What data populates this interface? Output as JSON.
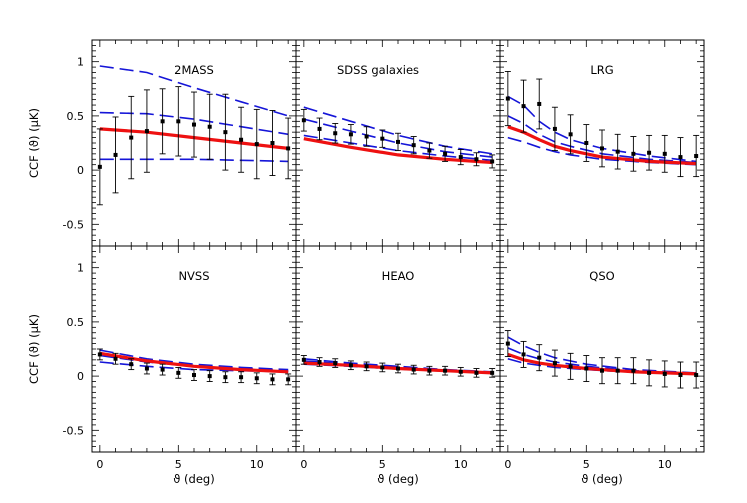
{
  "colors": {
    "data": "#000000",
    "model_best": "#ee1111",
    "model_bands": "#1515d8"
  },
  "chart_data": [
    {
      "type": "line",
      "title": "2MASS",
      "xlabel": "ϑ (deg)",
      "ylabel": "CCF (ϑ)   (μK)",
      "xlim": [
        -0.5,
        12.5
      ],
      "ylim": [
        -0.7,
        1.2
      ],
      "x_ticks": [
        0,
        5,
        10
      ],
      "y_ticks": [
        "-0.5",
        "0",
        "0.5",
        "1"
      ],
      "data_points": {
        "x": [
          0,
          1,
          2,
          3,
          4,
          5,
          6,
          7,
          8,
          9,
          10,
          11,
          12
        ],
        "y": [
          0.03,
          0.14,
          0.3,
          0.36,
          0.45,
          0.45,
          0.42,
          0.4,
          0.35,
          0.28,
          0.24,
          0.25,
          0.2
        ],
        "err": [
          0.35,
          0.35,
          0.38,
          0.38,
          0.3,
          0.32,
          0.3,
          0.3,
          0.35,
          0.3,
          0.32,
          0.3,
          0.28
        ]
      },
      "best_fit": {
        "x": [
          0,
          3,
          6,
          9,
          12
        ],
        "y": [
          0.38,
          0.35,
          0.3,
          0.25,
          0.2
        ]
      },
      "bands": [
        {
          "x": [
            0,
            3,
            6,
            9,
            12
          ],
          "y": [
            0.96,
            0.9,
            0.76,
            0.63,
            0.5
          ]
        },
        {
          "x": [
            0,
            3,
            6,
            9,
            12
          ],
          "y": [
            0.53,
            0.52,
            0.47,
            0.4,
            0.33
          ]
        },
        {
          "x": [
            0,
            3,
            6,
            9,
            12
          ],
          "y": [
            0.1,
            0.1,
            0.1,
            0.09,
            0.08
          ]
        }
      ]
    },
    {
      "type": "line",
      "title": "SDSS galaxies",
      "xlabel": "ϑ (deg)",
      "ylabel": "",
      "xlim": [
        -0.5,
        12.5
      ],
      "ylim": [
        -0.7,
        1.2
      ],
      "x_ticks": [
        0,
        5,
        10
      ],
      "y_ticks": [],
      "data_points": {
        "x": [
          0,
          1,
          2,
          3,
          4,
          5,
          6,
          7,
          8,
          9,
          10,
          11,
          12
        ],
        "y": [
          0.46,
          0.38,
          0.34,
          0.33,
          0.31,
          0.29,
          0.26,
          0.23,
          0.18,
          0.15,
          0.12,
          0.1,
          0.08
        ],
        "err": [
          0.1,
          0.1,
          0.09,
          0.09,
          0.09,
          0.08,
          0.08,
          0.08,
          0.07,
          0.07,
          0.07,
          0.06,
          0.06
        ]
      },
      "best_fit": {
        "x": [
          0,
          3,
          6,
          9,
          12
        ],
        "y": [
          0.29,
          0.21,
          0.14,
          0.1,
          0.07
        ]
      },
      "bands": [
        {
          "x": [
            0,
            3,
            6,
            9,
            12
          ],
          "y": [
            0.58,
            0.45,
            0.32,
            0.22,
            0.15
          ]
        },
        {
          "x": [
            0,
            3,
            6,
            9,
            12
          ],
          "y": [
            0.47,
            0.36,
            0.25,
            0.17,
            0.12
          ]
        },
        {
          "x": [
            0,
            3,
            6,
            9,
            12
          ],
          "y": [
            0.32,
            0.25,
            0.18,
            0.13,
            0.09
          ]
        }
      ]
    },
    {
      "type": "line",
      "title": "LRG",
      "xlabel": "ϑ (deg)",
      "ylabel": "",
      "xlim": [
        -0.5,
        12.5
      ],
      "ylim": [
        -0.7,
        1.2
      ],
      "x_ticks": [
        0,
        5,
        10
      ],
      "y_ticks": [],
      "data_points": {
        "x": [
          0,
          1,
          2,
          3,
          4,
          5,
          6,
          7,
          8,
          9,
          10,
          11,
          12
        ],
        "y": [
          0.66,
          0.59,
          0.61,
          0.38,
          0.33,
          0.25,
          0.2,
          0.17,
          0.15,
          0.16,
          0.15,
          0.12,
          0.13
        ],
        "err": [
          0.25,
          0.24,
          0.23,
          0.2,
          0.18,
          0.17,
          0.17,
          0.16,
          0.16,
          0.16,
          0.17,
          0.18,
          0.19
        ]
      },
      "best_fit": {
        "x": [
          0,
          1,
          2,
          3,
          4,
          6,
          9,
          12
        ],
        "y": [
          0.4,
          0.35,
          0.28,
          0.22,
          0.18,
          0.12,
          0.08,
          0.06
        ]
      },
      "bands": [
        {
          "x": [
            0,
            1,
            2,
            3,
            4,
            6,
            9,
            12
          ],
          "y": [
            0.68,
            0.6,
            0.45,
            0.35,
            0.28,
            0.2,
            0.13,
            0.08
          ]
        },
        {
          "x": [
            0,
            1,
            2,
            3,
            4,
            6,
            9,
            12
          ],
          "y": [
            0.5,
            0.43,
            0.33,
            0.26,
            0.22,
            0.15,
            0.1,
            0.07
          ]
        },
        {
          "x": [
            0,
            1,
            2,
            3,
            4,
            6,
            9,
            12
          ],
          "y": [
            0.3,
            0.26,
            0.21,
            0.17,
            0.14,
            0.1,
            0.07,
            0.05
          ]
        }
      ]
    },
    {
      "type": "line",
      "title": "NVSS",
      "xlabel": "ϑ (deg)",
      "ylabel": "CCF (ϑ)   (μK)",
      "xlim": [
        -0.5,
        12.5
      ],
      "ylim": [
        -0.7,
        1.2
      ],
      "x_ticks": [
        0,
        5,
        10
      ],
      "y_ticks": [
        "-0.5",
        "0",
        "0.5",
        "1"
      ],
      "data_points": {
        "x": [
          0,
          1,
          2,
          3,
          4,
          5,
          6,
          7,
          8,
          9,
          10,
          11,
          12
        ],
        "y": [
          0.2,
          0.16,
          0.11,
          0.07,
          0.06,
          0.03,
          0.01,
          0.0,
          -0.01,
          -0.01,
          -0.02,
          -0.03,
          -0.03
        ],
        "err": [
          0.05,
          0.05,
          0.05,
          0.05,
          0.05,
          0.05,
          0.05,
          0.05,
          0.05,
          0.05,
          0.05,
          0.05,
          0.05
        ]
      },
      "best_fit": {
        "x": [
          0,
          3,
          6,
          9,
          12
        ],
        "y": [
          0.21,
          0.14,
          0.09,
          0.06,
          0.04
        ]
      },
      "bands": [
        {
          "x": [
            0,
            3,
            6,
            9,
            12
          ],
          "y": [
            0.24,
            0.16,
            0.11,
            0.08,
            0.06
          ]
        },
        {
          "x": [
            0,
            3,
            6,
            9,
            12
          ],
          "y": [
            0.19,
            0.13,
            0.09,
            0.07,
            0.05
          ]
        },
        {
          "x": [
            0,
            3,
            6,
            9,
            12
          ],
          "y": [
            0.13,
            0.09,
            0.06,
            0.05,
            0.04
          ]
        }
      ]
    },
    {
      "type": "line",
      "title": "HEAO",
      "xlabel": "ϑ (deg)",
      "ylabel": "",
      "xlim": [
        -0.5,
        12.5
      ],
      "ylim": [
        -0.7,
        1.2
      ],
      "x_ticks": [
        0,
        5,
        10
      ],
      "y_ticks": [],
      "data_points": {
        "x": [
          0,
          1,
          2,
          3,
          4,
          5,
          6,
          7,
          8,
          9,
          10,
          11,
          12
        ],
        "y": [
          0.15,
          0.13,
          0.12,
          0.1,
          0.09,
          0.08,
          0.07,
          0.06,
          0.05,
          0.05,
          0.04,
          0.03,
          0.03
        ],
        "err": [
          0.04,
          0.04,
          0.04,
          0.04,
          0.04,
          0.04,
          0.04,
          0.04,
          0.04,
          0.04,
          0.04,
          0.04,
          0.04
        ]
      },
      "best_fit": {
        "x": [
          0,
          3,
          6,
          9,
          12
        ],
        "y": [
          0.12,
          0.1,
          0.07,
          0.05,
          0.03
        ]
      },
      "bands": [
        {
          "x": [
            0,
            3,
            6,
            9,
            12
          ],
          "y": [
            0.16,
            0.12,
            0.09,
            0.06,
            0.04
          ]
        },
        {
          "x": [
            0,
            3,
            6,
            9,
            12
          ],
          "y": [
            0.14,
            0.11,
            0.08,
            0.055,
            0.035
          ]
        },
        {
          "x": [
            0,
            3,
            6,
            9,
            12
          ],
          "y": [
            0.11,
            0.09,
            0.065,
            0.045,
            0.03
          ]
        }
      ]
    },
    {
      "type": "line",
      "title": "QSO",
      "xlabel": "ϑ (deg)",
      "ylabel": "",
      "xlim": [
        -0.5,
        12.5
      ],
      "ylim": [
        -0.7,
        1.2
      ],
      "x_ticks": [
        0,
        5,
        10
      ],
      "y_ticks": [],
      "data_points": {
        "x": [
          0,
          1,
          2,
          3,
          4,
          5,
          6,
          7,
          8,
          9,
          10,
          11,
          12
        ],
        "y": [
          0.3,
          0.2,
          0.17,
          0.12,
          0.09,
          0.07,
          0.05,
          0.05,
          0.05,
          0.03,
          0.02,
          0.01,
          0.01
        ],
        "err": [
          0.12,
          0.12,
          0.12,
          0.12,
          0.12,
          0.12,
          0.12,
          0.12,
          0.12,
          0.12,
          0.12,
          0.12,
          0.12
        ]
      },
      "best_fit": {
        "x": [
          0,
          1,
          2,
          3,
          5,
          8,
          12
        ],
        "y": [
          0.2,
          0.15,
          0.12,
          0.1,
          0.07,
          0.04,
          0.02
        ]
      },
      "bands": [
        {
          "x": [
            0,
            1,
            2,
            3,
            5,
            8,
            12
          ],
          "y": [
            0.36,
            0.28,
            0.22,
            0.17,
            0.11,
            0.06,
            0.03
          ]
        },
        {
          "x": [
            0,
            1,
            2,
            3,
            5,
            8,
            12
          ],
          "y": [
            0.26,
            0.2,
            0.16,
            0.13,
            0.09,
            0.05,
            0.025
          ]
        },
        {
          "x": [
            0,
            1,
            2,
            3,
            5,
            8,
            12
          ],
          "y": [
            0.16,
            0.12,
            0.1,
            0.08,
            0.06,
            0.035,
            0.02
          ]
        }
      ]
    }
  ]
}
